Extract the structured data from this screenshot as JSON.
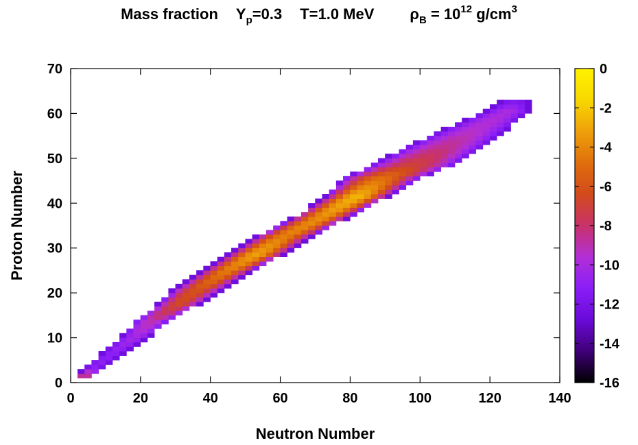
{
  "chart_data": {
    "type": "heatmap",
    "title": {
      "label": "Mass fraction",
      "yp_main": "Y",
      "yp_sub": "p",
      "yp_value": "=0.3",
      "temperature": "T=1.0 MeV",
      "rho_main": "ρ",
      "rho_sub": "B",
      "rho_eq": " = 10",
      "rho_exp": "12",
      "rho_unit": " g/cm",
      "rho_unit_exp": "3"
    },
    "xlabel": "Neutron Number",
    "ylabel": "Proton Number",
    "xlim": [
      0,
      140
    ],
    "ylim": [
      0,
      70
    ],
    "xticks": [
      "0",
      "20",
      "40",
      "60",
      "80",
      "100",
      "120",
      "140"
    ],
    "yticks": [
      "0",
      "10",
      "20",
      "30",
      "40",
      "50",
      "60",
      "70"
    ],
    "colorbar": {
      "range": [
        -16,
        0
      ],
      "ticks": [
        "0",
        "-2",
        "-4",
        "-6",
        "-8",
        "-10",
        "-12",
        "-14",
        "-16"
      ],
      "colormap": [
        "#000000",
        "#400078",
        "#6a0ad8",
        "#8a1ef8",
        "#b22fd6",
        "#c8326a",
        "#d24a1c",
        "#e06f0c",
        "#eea00a",
        "#f8d800",
        "#fff200"
      ],
      "label": ""
    },
    "ridge": [
      {
        "z": 1,
        "n_center": 3,
        "n_halfwidth": 2.5,
        "log_peak": -8
      },
      {
        "z": 3,
        "n_center": 6,
        "n_halfwidth": 2.5,
        "log_peak": -11
      },
      {
        "z": 6,
        "n_center": 11,
        "n_halfwidth": 3,
        "log_peak": -11
      },
      {
        "z": 10,
        "n_center": 18,
        "n_halfwidth": 4,
        "log_peak": -10
      },
      {
        "z": 13,
        "n_center": 22,
        "n_halfwidth": 5,
        "log_peak": -9
      },
      {
        "z": 17,
        "n_center": 30,
        "n_halfwidth": 6,
        "log_peak": -6.5
      },
      {
        "z": 20,
        "n_center": 35,
        "n_halfwidth": 7,
        "log_peak": -6
      },
      {
        "z": 24,
        "n_center": 43,
        "n_halfwidth": 7,
        "log_peak": -4.5
      },
      {
        "z": 28,
        "n_center": 52,
        "n_halfwidth": 8,
        "log_peak": -3.2
      },
      {
        "z": 32,
        "n_center": 60,
        "n_halfwidth": 8,
        "log_peak": -4.2
      },
      {
        "z": 36,
        "n_center": 70,
        "n_halfwidth": 8,
        "log_peak": -3.8
      },
      {
        "z": 41,
        "n_center": 81,
        "n_halfwidth": 9,
        "log_peak": -2.6
      },
      {
        "z": 45,
        "n_center": 88,
        "n_halfwidth": 11,
        "log_peak": -4.8
      },
      {
        "z": 48,
        "n_center": 97,
        "n_halfwidth": 12,
        "log_peak": -7
      },
      {
        "z": 52,
        "n_center": 106,
        "n_halfwidth": 11,
        "log_peak": -8.5
      },
      {
        "z": 56,
        "n_center": 115,
        "n_halfwidth": 9,
        "log_peak": -9.5
      },
      {
        "z": 60,
        "n_center": 124,
        "n_halfwidth": 6,
        "log_peak": -10
      },
      {
        "z": 62,
        "n_center": 126,
        "n_halfwidth": 4,
        "log_peak": -11.5
      }
    ],
    "grid": false,
    "legend": "none"
  }
}
